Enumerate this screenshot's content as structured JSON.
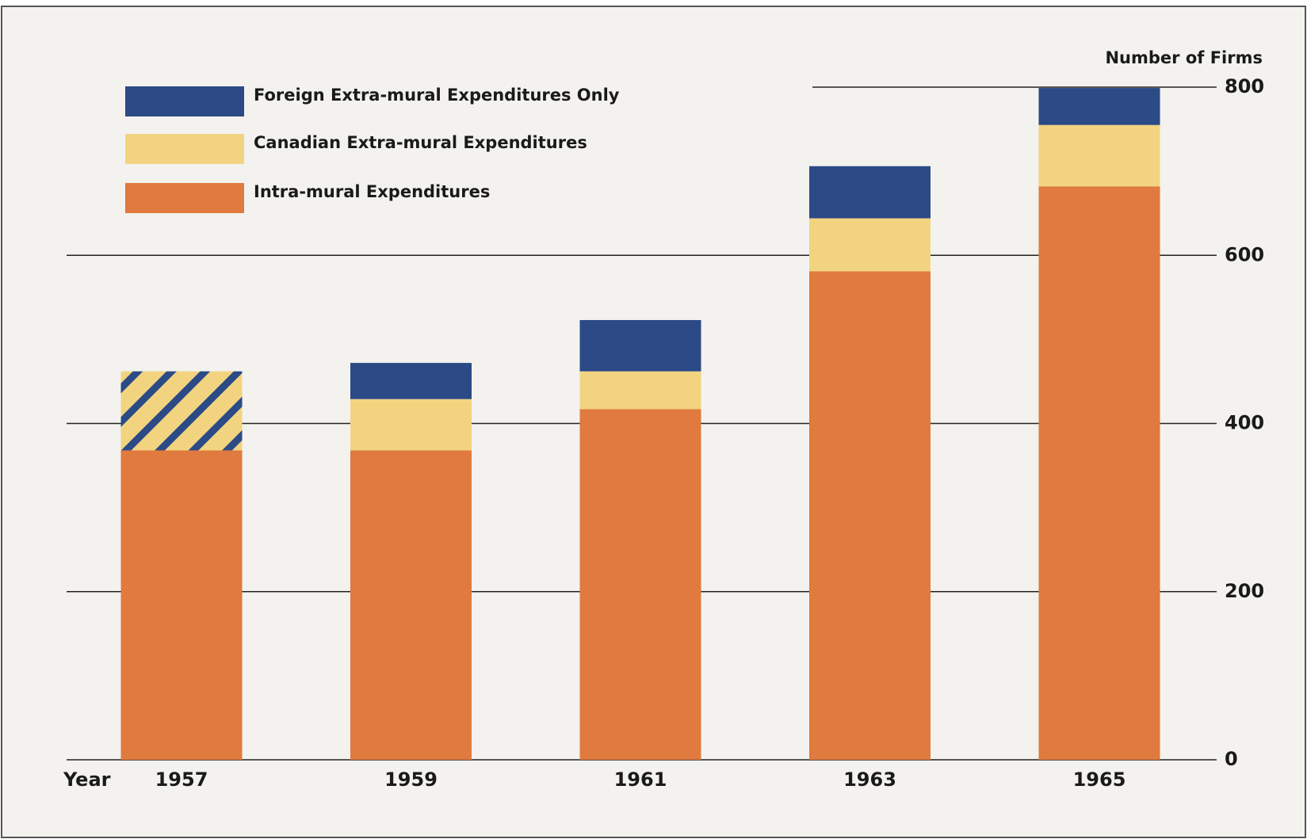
{
  "chart_data": {
    "type": "stacked_bar",
    "y_axis_label": "Number of Firms",
    "x_axis_label": "Year",
    "categories": [
      "1957",
      "1959",
      "1961",
      "1963",
      "1965"
    ],
    "series": [
      {
        "name": "Intra-mural Expenditures",
        "color": "#e07a3e",
        "values": [
          368,
          368,
          417,
          581,
          682
        ]
      },
      {
        "name": "Canadian Extra-mural Expenditures",
        "color": "#f2d480",
        "values": [
          94,
          61,
          45,
          63,
          73
        ],
        "hatched": [
          true,
          false,
          false,
          false,
          false
        ]
      },
      {
        "name": "Foreign Extra-mural Expenditures Only",
        "color": "#2b4a86",
        "values": [
          null,
          43,
          61,
          62,
          44
        ]
      }
    ],
    "ylim": [
      0,
      800
    ],
    "yticks": [
      0,
      200,
      400,
      600,
      800
    ],
    "y_axis_side": "right",
    "grid": true,
    "legend": "top-left"
  }
}
